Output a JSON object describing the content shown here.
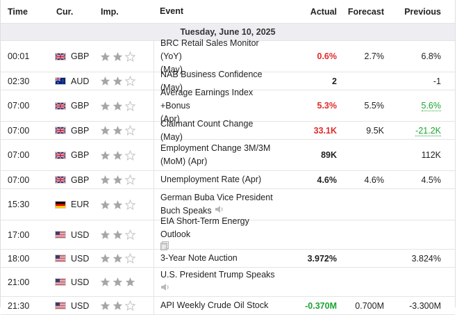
{
  "headers": {
    "time": "Time",
    "currency": "Cur.",
    "importance": "Imp.",
    "event": "Event",
    "actual": "Actual",
    "forecast": "Forecast",
    "previous": "Previous"
  },
  "date_label": "Tuesday, June 10, 2025",
  "colors": {
    "negative": "#e12a2a",
    "positive": "#1aa431",
    "star_filled": "#a6a6a6",
    "star_empty": "#c8c8c8",
    "date_band": "#eeeef2"
  },
  "events": [
    {
      "time": "00:01",
      "cur": "GBP",
      "flag": "uk-flag-icon",
      "stars": 2,
      "event_lines": [
        "BRC Retail Sales Monitor (YoY)",
        "(May)"
      ],
      "actual": "0.6%",
      "actual_color": "negative",
      "forecast": "2.7%",
      "previous": "6.8%",
      "previous_color": "",
      "extra_icon": ""
    },
    {
      "time": "02:30",
      "cur": "AUD",
      "flag": "australia-flag-icon",
      "stars": 2,
      "event_lines": [
        "NAB Business Confidence (May)"
      ],
      "actual": "2",
      "actual_color": "",
      "forecast": "",
      "previous": "-1",
      "previous_color": "",
      "extra_icon": ""
    },
    {
      "time": "07:00",
      "cur": "GBP",
      "flag": "uk-flag-icon",
      "stars": 2,
      "event_lines": [
        "Average Earnings Index +Bonus",
        "(Apr)"
      ],
      "actual": "5.3%",
      "actual_color": "negative",
      "forecast": "5.5%",
      "previous": "5.6%",
      "previous_color": "positive",
      "extra_icon": ""
    },
    {
      "time": "07:00",
      "cur": "GBP",
      "flag": "uk-flag-icon",
      "stars": 2,
      "event_lines": [
        "Claimant Count Change (May)"
      ],
      "actual": "33.1K",
      "actual_color": "negative",
      "forecast": "9.5K",
      "previous": "-21.2K",
      "previous_color": "positive",
      "extra_icon": ""
    },
    {
      "time": "07:00",
      "cur": "GBP",
      "flag": "uk-flag-icon",
      "stars": 2,
      "event_lines": [
        "Employment Change 3M/3M",
        "(MoM) (Apr)"
      ],
      "actual": "89K",
      "actual_color": "",
      "forecast": "",
      "previous": "112K",
      "previous_color": "",
      "extra_icon": ""
    },
    {
      "time": "07:00",
      "cur": "GBP",
      "flag": "uk-flag-icon",
      "stars": 2,
      "event_lines": [
        "Unemployment Rate (Apr)"
      ],
      "actual": "4.6%",
      "actual_color": "",
      "forecast": "4.6%",
      "previous": "4.5%",
      "previous_color": "",
      "extra_icon": ""
    },
    {
      "time": "15:30",
      "cur": "EUR",
      "flag": "germany-flag-icon",
      "stars": 2,
      "event_lines": [
        "German Buba Vice President",
        "Buch Speaks"
      ],
      "actual": "",
      "actual_color": "",
      "forecast": "",
      "previous": "",
      "previous_color": "",
      "extra_icon": "speaker-icon"
    },
    {
      "time": "17:00",
      "cur": "USD",
      "flag": "usa-flag-icon",
      "stars": 2,
      "event_lines": [
        "EIA Short-Term Energy Outlook",
        ""
      ],
      "actual": "",
      "actual_color": "",
      "forecast": "",
      "previous": "",
      "previous_color": "",
      "extra_icon": "document-icon"
    },
    {
      "time": "18:00",
      "cur": "USD",
      "flag": "usa-flag-icon",
      "stars": 2,
      "event_lines": [
        "3-Year Note Auction"
      ],
      "actual": "3.972%",
      "actual_color": "",
      "forecast": "",
      "previous": "3.824%",
      "previous_color": "",
      "extra_icon": ""
    },
    {
      "time": "21:00",
      "cur": "USD",
      "flag": "usa-flag-icon",
      "stars": 3,
      "event_lines": [
        "U.S. President Trump Speaks",
        ""
      ],
      "actual": "",
      "actual_color": "",
      "forecast": "",
      "previous": "",
      "previous_color": "",
      "extra_icon": "speaker-icon"
    },
    {
      "time": "21:30",
      "cur": "USD",
      "flag": "usa-flag-icon",
      "stars": 2,
      "event_lines": [
        "API Weekly Crude Oil Stock"
      ],
      "actual": "-0.370M",
      "actual_color": "positive",
      "forecast": "0.700M",
      "previous": "-3.300M",
      "previous_color": "",
      "extra_icon": ""
    }
  ]
}
